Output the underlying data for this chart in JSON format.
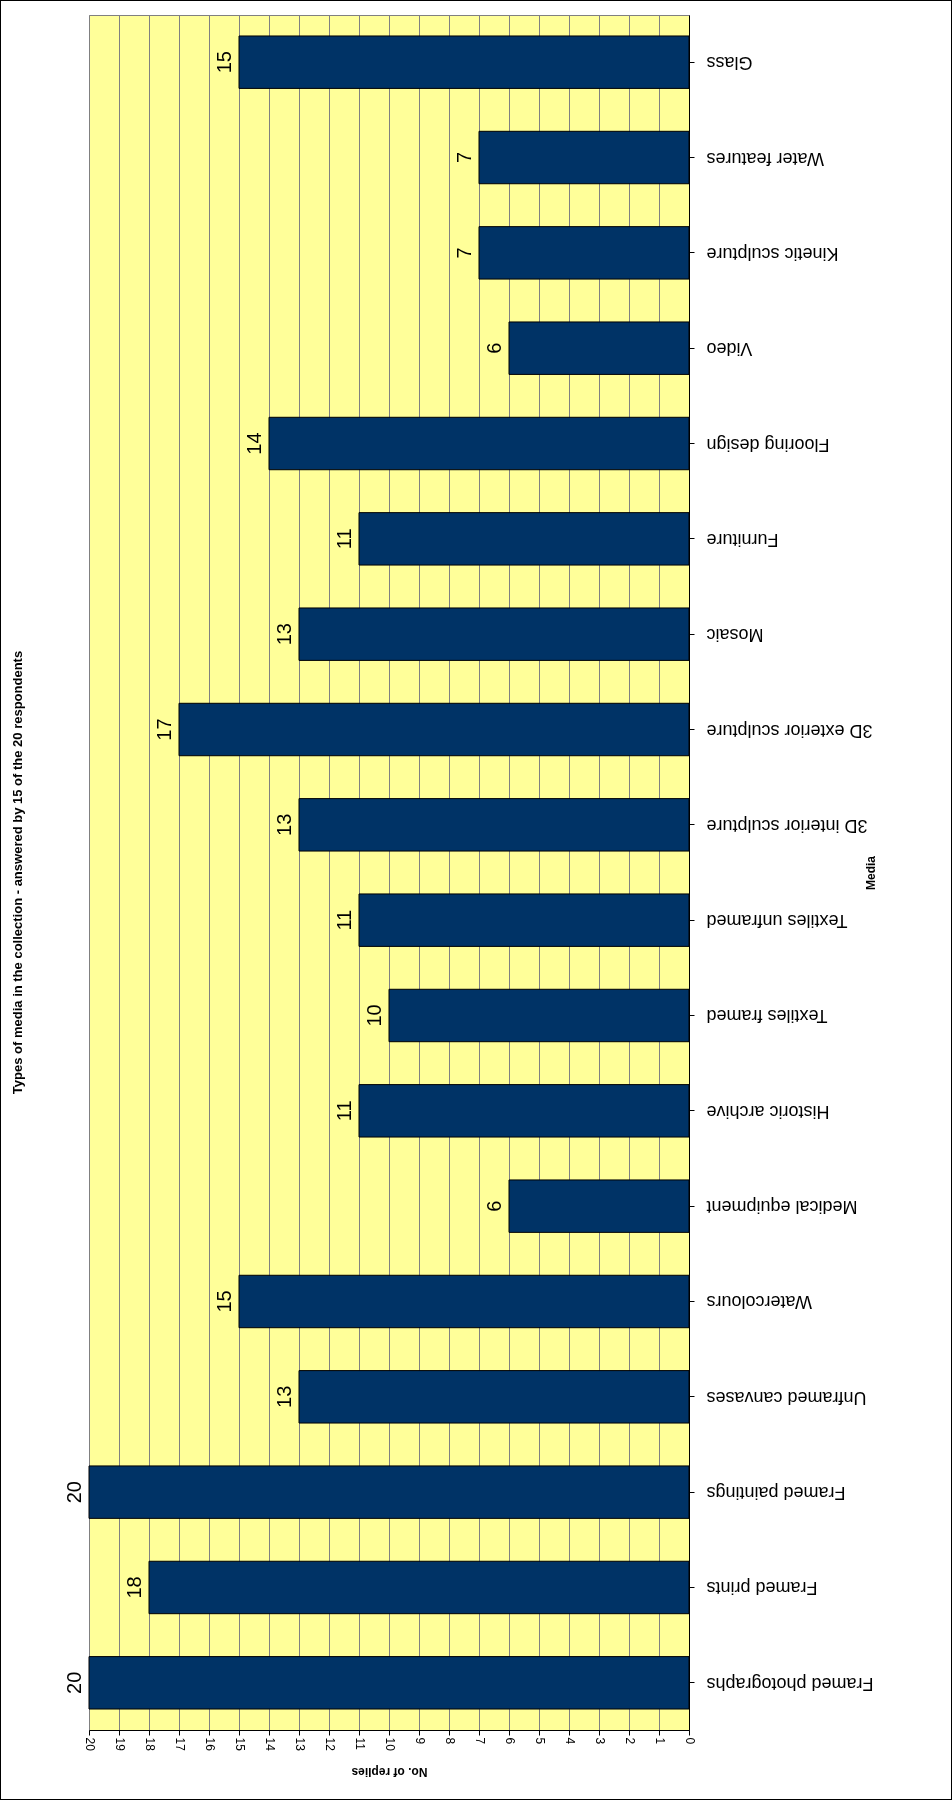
{
  "chart_data": {
    "type": "bar",
    "orientation": "horizontal",
    "title": "Types of media in the collection - answered by 15 of the 20 respondents",
    "xlabel": "No. of replies",
    "ylabel": "Media",
    "categories": [
      "Glass",
      "Water features",
      "Kinetic sculpture",
      "Video",
      "Flooring design",
      "Furniture",
      "Mosaic",
      "3D exterior sculpture",
      "3D interior sculpture",
      "Textiles unframed",
      "Textiles framed",
      "Historic archive",
      "Medical equipment",
      "Watercolours",
      "Unframed canvases",
      "Framed paintings",
      "Framed prints",
      "Framed photographs"
    ],
    "values": [
      15,
      7,
      7,
      6,
      14,
      11,
      13,
      17,
      13,
      11,
      10,
      11,
      6,
      15,
      13,
      20,
      18,
      20
    ],
    "color": "#003366",
    "xlim": [
      20,
      0
    ],
    "xticks": [
      20,
      19,
      18,
      17,
      16,
      15,
      14,
      13,
      12,
      11,
      10,
      9,
      8,
      7,
      6,
      5,
      4,
      3,
      2,
      1,
      0
    ],
    "grid": "x",
    "data_labels": true
  }
}
